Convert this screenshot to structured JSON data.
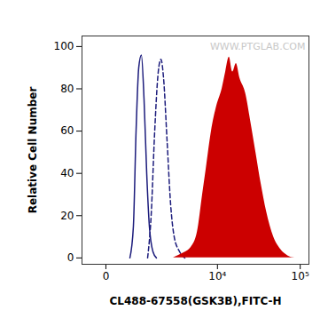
{
  "chart_data": {
    "type": "line",
    "x_label": "CL488-67558(GSK3B),FITC-H",
    "y_label": "Relative Cell Number",
    "annotations": [
      "WWW.PTGLAB.COM"
    ],
    "log": "x",
    "xlim": [
      -460,
      127000
    ],
    "xticks": [
      0,
      {
        "value": 10000,
        "label": "10⁴"
      },
      {
        "value": 100000,
        "label": "10⁵"
      }
    ],
    "ylim": [
      -3,
      105
    ],
    "yticks": [
      0,
      20,
      40,
      60,
      80,
      100
    ],
    "series": [
      {
        "type": "line",
        "color": "#1c1c7c",
        "line_style": "solid",
        "x": [
          462,
          559,
          639,
          725,
          817,
          916,
          1023,
          1137,
          1304,
          1487
        ],
        "values": [
          0,
          15,
          60,
          90,
          96,
          75,
          40,
          15,
          3,
          0
        ]
      },
      {
        "type": "line",
        "color": "#1c1c7c",
        "line_style": "dashed",
        "x": [
          1060,
          1219,
          1394,
          1587,
          1743,
          1913,
          2158,
          2429,
          2725,
          3232,
          3815
        ],
        "values": [
          0,
          20,
          60,
          88,
          94,
          85,
          55,
          25,
          10,
          3,
          0
        ]
      },
      {
        "type": "area",
        "color": "#cc0000",
        "line_style": "solid",
        "x": [
          2650,
          3510,
          4610,
          5555,
          6500,
          7215,
          8415,
          9815,
          11425,
          12640,
          13980,
          15450,
          17050,
          18850,
          22100,
          25400,
          29450,
          34100,
          39550,
          48050,
          58450,
          71050,
          86300
        ],
        "values": [
          0,
          2,
          5,
          12,
          30,
          42,
          60,
          72,
          80,
          88,
          95,
          88,
          92,
          85,
          78,
          65,
          50,
          35,
          22,
          10,
          4,
          1,
          0
        ]
      }
    ]
  }
}
